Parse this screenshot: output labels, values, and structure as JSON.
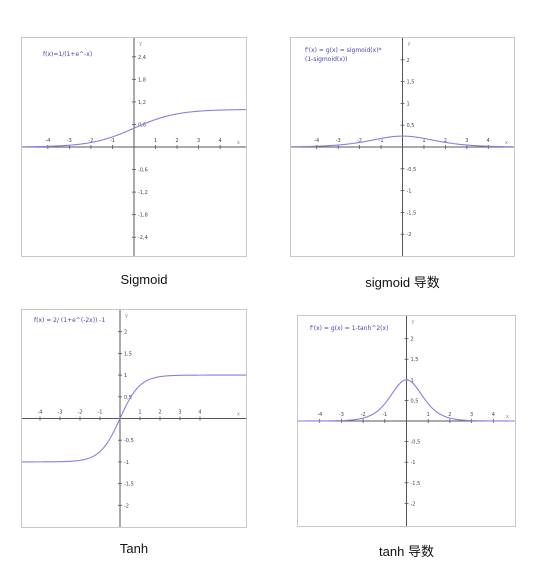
{
  "chart_data": [
    {
      "type": "line",
      "title": "Sigmoid",
      "formula": "f(x)=1/(1+e^-x)",
      "axis_names": {
        "x": "x",
        "y": "y"
      },
      "x_ticks": [
        "-4",
        "-3",
        "-2",
        "-1",
        "1",
        "2",
        "3",
        "4"
      ],
      "y_ticks": [
        "2,4",
        "1,8",
        "1,2",
        "0,6",
        "-0,6",
        "-1,2",
        "-1,8",
        "-2,4"
      ],
      "xlim": [
        -5.2,
        5.2
      ],
      "ylim": [
        -2.9,
        2.9
      ],
      "function": "sigmoid",
      "series": [
        {
          "x": [
            -5,
            -4,
            -3,
            -2,
            -1,
            0,
            1,
            2,
            3,
            4,
            5
          ],
          "y": [
            0.007,
            0.018,
            0.047,
            0.119,
            0.269,
            0.5,
            0.731,
            0.881,
            0.953,
            0.982,
            0.993
          ]
        }
      ],
      "grid": false
    },
    {
      "type": "line",
      "title": "sigmoid 导数",
      "formula": "f'(x) = g(x) = sigmoid(x)*\n(1-sigmoid(x))",
      "axis_names": {
        "x": "x",
        "y": "y"
      },
      "x_ticks": [
        "-4",
        "-3",
        "-2",
        "-1",
        "1",
        "2",
        "3",
        "4"
      ],
      "y_ticks": [
        "2",
        "1,5",
        "1",
        "0,5",
        "-0,5",
        "-1",
        "-1,5",
        "-2"
      ],
      "xlim": [
        -5.2,
        5.2
      ],
      "ylim": [
        -2.5,
        2.5
      ],
      "function": "sigmoid_derivative",
      "series": [
        {
          "x": [
            -5,
            -4,
            -3,
            -2,
            -1,
            0,
            1,
            2,
            3,
            4,
            5
          ],
          "y": [
            0.007,
            0.018,
            0.045,
            0.105,
            0.197,
            0.25,
            0.197,
            0.105,
            0.045,
            0.018,
            0.007
          ]
        }
      ],
      "grid": false
    },
    {
      "type": "line",
      "title": "Tanh",
      "formula": "f(x) = 2/ (1+e^(-2x)) -1",
      "axis_names": {
        "x": "x",
        "y": "y"
      },
      "x_ticks": [
        "-4",
        "-3",
        "-2",
        "-1",
        "1",
        "2",
        "3",
        "4"
      ],
      "y_ticks": [
        "2",
        "1,5",
        "1",
        "0,5",
        "-0,5",
        "-1",
        "-1,5",
        "-2"
      ],
      "xlim": [
        -4.9,
        6.3
      ],
      "ylim": [
        -2.5,
        2.5
      ],
      "function": "tanh",
      "series": [
        {
          "x": [
            -4,
            -3,
            -2,
            -1,
            0,
            1,
            2,
            3,
            4
          ],
          "y": [
            -0.999,
            -0.995,
            -0.964,
            -0.762,
            0,
            0.762,
            0.964,
            0.995,
            0.999
          ]
        }
      ],
      "grid": false
    },
    {
      "type": "line",
      "title": "tanh 导数",
      "formula": "f'(x) = g(x) = 1-tanh^2(x)",
      "axis_names": {
        "x": "x",
        "y": "y"
      },
      "x_ticks": [
        "-4",
        "-3",
        "-2",
        "-1",
        "1",
        "2",
        "3",
        "4"
      ],
      "y_ticks": [
        "2",
        "1,5",
        "1",
        "0,5",
        "-0,5",
        "-1",
        "-1,5",
        "-2"
      ],
      "xlim": [
        -5.0,
        5.0
      ],
      "ylim": [
        -2.55,
        2.55
      ],
      "function": "tanh_derivative",
      "series": [
        {
          "x": [
            -4,
            -3,
            -2,
            -1,
            0,
            1,
            2,
            3,
            4
          ],
          "y": [
            0.001,
            0.01,
            0.071,
            0.42,
            1,
            0.42,
            0.071,
            0.01,
            0.001
          ]
        }
      ],
      "grid": false
    }
  ],
  "theme": {
    "curve": "#8a7de0",
    "axis": "#555555",
    "label": "#4a3fb0"
  }
}
